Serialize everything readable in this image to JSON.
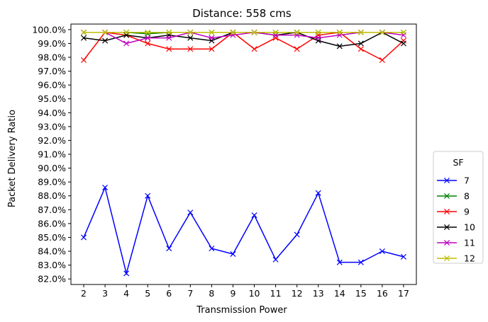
{
  "chart_data": {
    "type": "line",
    "title": "Distance: 558 cms",
    "xlabel": "Transmission Power",
    "ylabel": "Packet Delivery Ratio",
    "x": [
      2,
      3,
      4,
      5,
      6,
      7,
      8,
      9,
      10,
      11,
      12,
      13,
      14,
      15,
      16,
      17
    ],
    "xlim": [
      1.4,
      17.6
    ],
    "ylim": [
      81.6,
      100.4
    ],
    "yticks": [
      82,
      83,
      84,
      85,
      86,
      87,
      88,
      89,
      90,
      91,
      92,
      93,
      94,
      95,
      96,
      97,
      98,
      99,
      100
    ],
    "ytick_format": "percent_1dp",
    "grid": false,
    "marker": "x",
    "legend": {
      "title": "SF",
      "placement": "outside-right"
    },
    "series": [
      {
        "name": "7",
        "color": "#0000ff",
        "values": [
          85.0,
          88.6,
          82.4,
          88.0,
          84.2,
          86.8,
          84.2,
          83.8,
          86.6,
          83.4,
          85.2,
          88.2,
          83.2,
          83.2,
          84.0,
          83.6
        ]
      },
      {
        "name": "8",
        "color": "#008000",
        "values": [
          99.8,
          99.8,
          99.8,
          99.7,
          99.8,
          99.8,
          99.8,
          99.8,
          99.8,
          99.8,
          99.8,
          99.8,
          99.8,
          99.8,
          99.8,
          99.8
        ]
      },
      {
        "name": "9",
        "color": "#ff0000",
        "values": [
          97.8,
          99.8,
          99.6,
          99.0,
          98.6,
          98.6,
          98.6,
          99.8,
          98.6,
          99.4,
          98.6,
          99.6,
          99.8,
          98.6,
          97.8,
          99.2
        ]
      },
      {
        "name": "10",
        "color": "#000000",
        "values": [
          99.4,
          99.2,
          99.6,
          99.4,
          99.6,
          99.4,
          99.2,
          99.8,
          99.8,
          99.6,
          99.8,
          99.2,
          98.8,
          99.0,
          99.8,
          99.0
        ]
      },
      {
        "name": "11",
        "color": "#bf00bf",
        "values": [
          99.8,
          99.8,
          99.0,
          99.4,
          99.4,
          99.8,
          99.4,
          99.6,
          99.8,
          99.6,
          99.6,
          99.4,
          99.6,
          99.8,
          99.8,
          99.6
        ]
      },
      {
        "name": "12",
        "color": "#bfbf00",
        "values": [
          99.8,
          99.8,
          99.8,
          99.8,
          99.8,
          99.8,
          99.8,
          99.8,
          99.8,
          99.8,
          99.8,
          99.8,
          99.8,
          99.8,
          99.8,
          99.8
        ]
      }
    ]
  }
}
